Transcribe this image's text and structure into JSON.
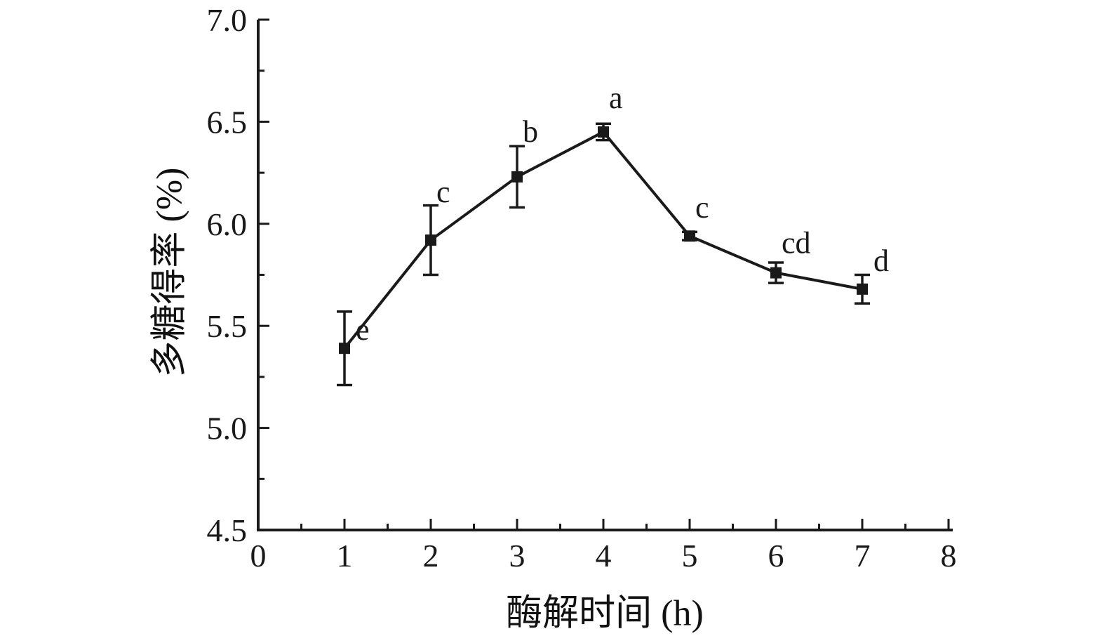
{
  "figure": {
    "xlabel": "酶解时间 (h)",
    "ylabel": "多糖得率 (%)"
  },
  "chart_data": {
    "type": "line",
    "x": [
      1,
      2,
      3,
      4,
      5,
      6,
      7
    ],
    "y": [
      5.39,
      5.92,
      6.23,
      6.45,
      5.94,
      5.76,
      5.68
    ],
    "yerr": [
      0.18,
      0.17,
      0.15,
      0.04,
      0.02,
      0.05,
      0.07
    ],
    "point_labels": [
      "e",
      "c",
      "b",
      "a",
      "c",
      "cd",
      "d"
    ],
    "label_dx": [
      16,
      8,
      8,
      8,
      8,
      8,
      16
    ],
    "label_dy": [
      -12,
      -54,
      -50,
      -34,
      -26,
      -28,
      -26
    ],
    "title": "",
    "xlabel": "酶解时间 (h)",
    "ylabel": "多糖得率 (%)",
    "xlim": [
      0,
      8
    ],
    "ylim": [
      4.5,
      7.0
    ],
    "xticks": [
      "0",
      "1",
      "2",
      "3",
      "4",
      "5",
      "6",
      "7",
      "8"
    ],
    "yticks": [
      "4.5",
      "5.0",
      "5.5",
      "6.0",
      "6.5",
      "7.0"
    ],
    "x_minor_step": 0.5,
    "y_minor_step": 0.25,
    "grid": false,
    "legend": null,
    "marker": "square",
    "color": "#1a1a1a"
  }
}
